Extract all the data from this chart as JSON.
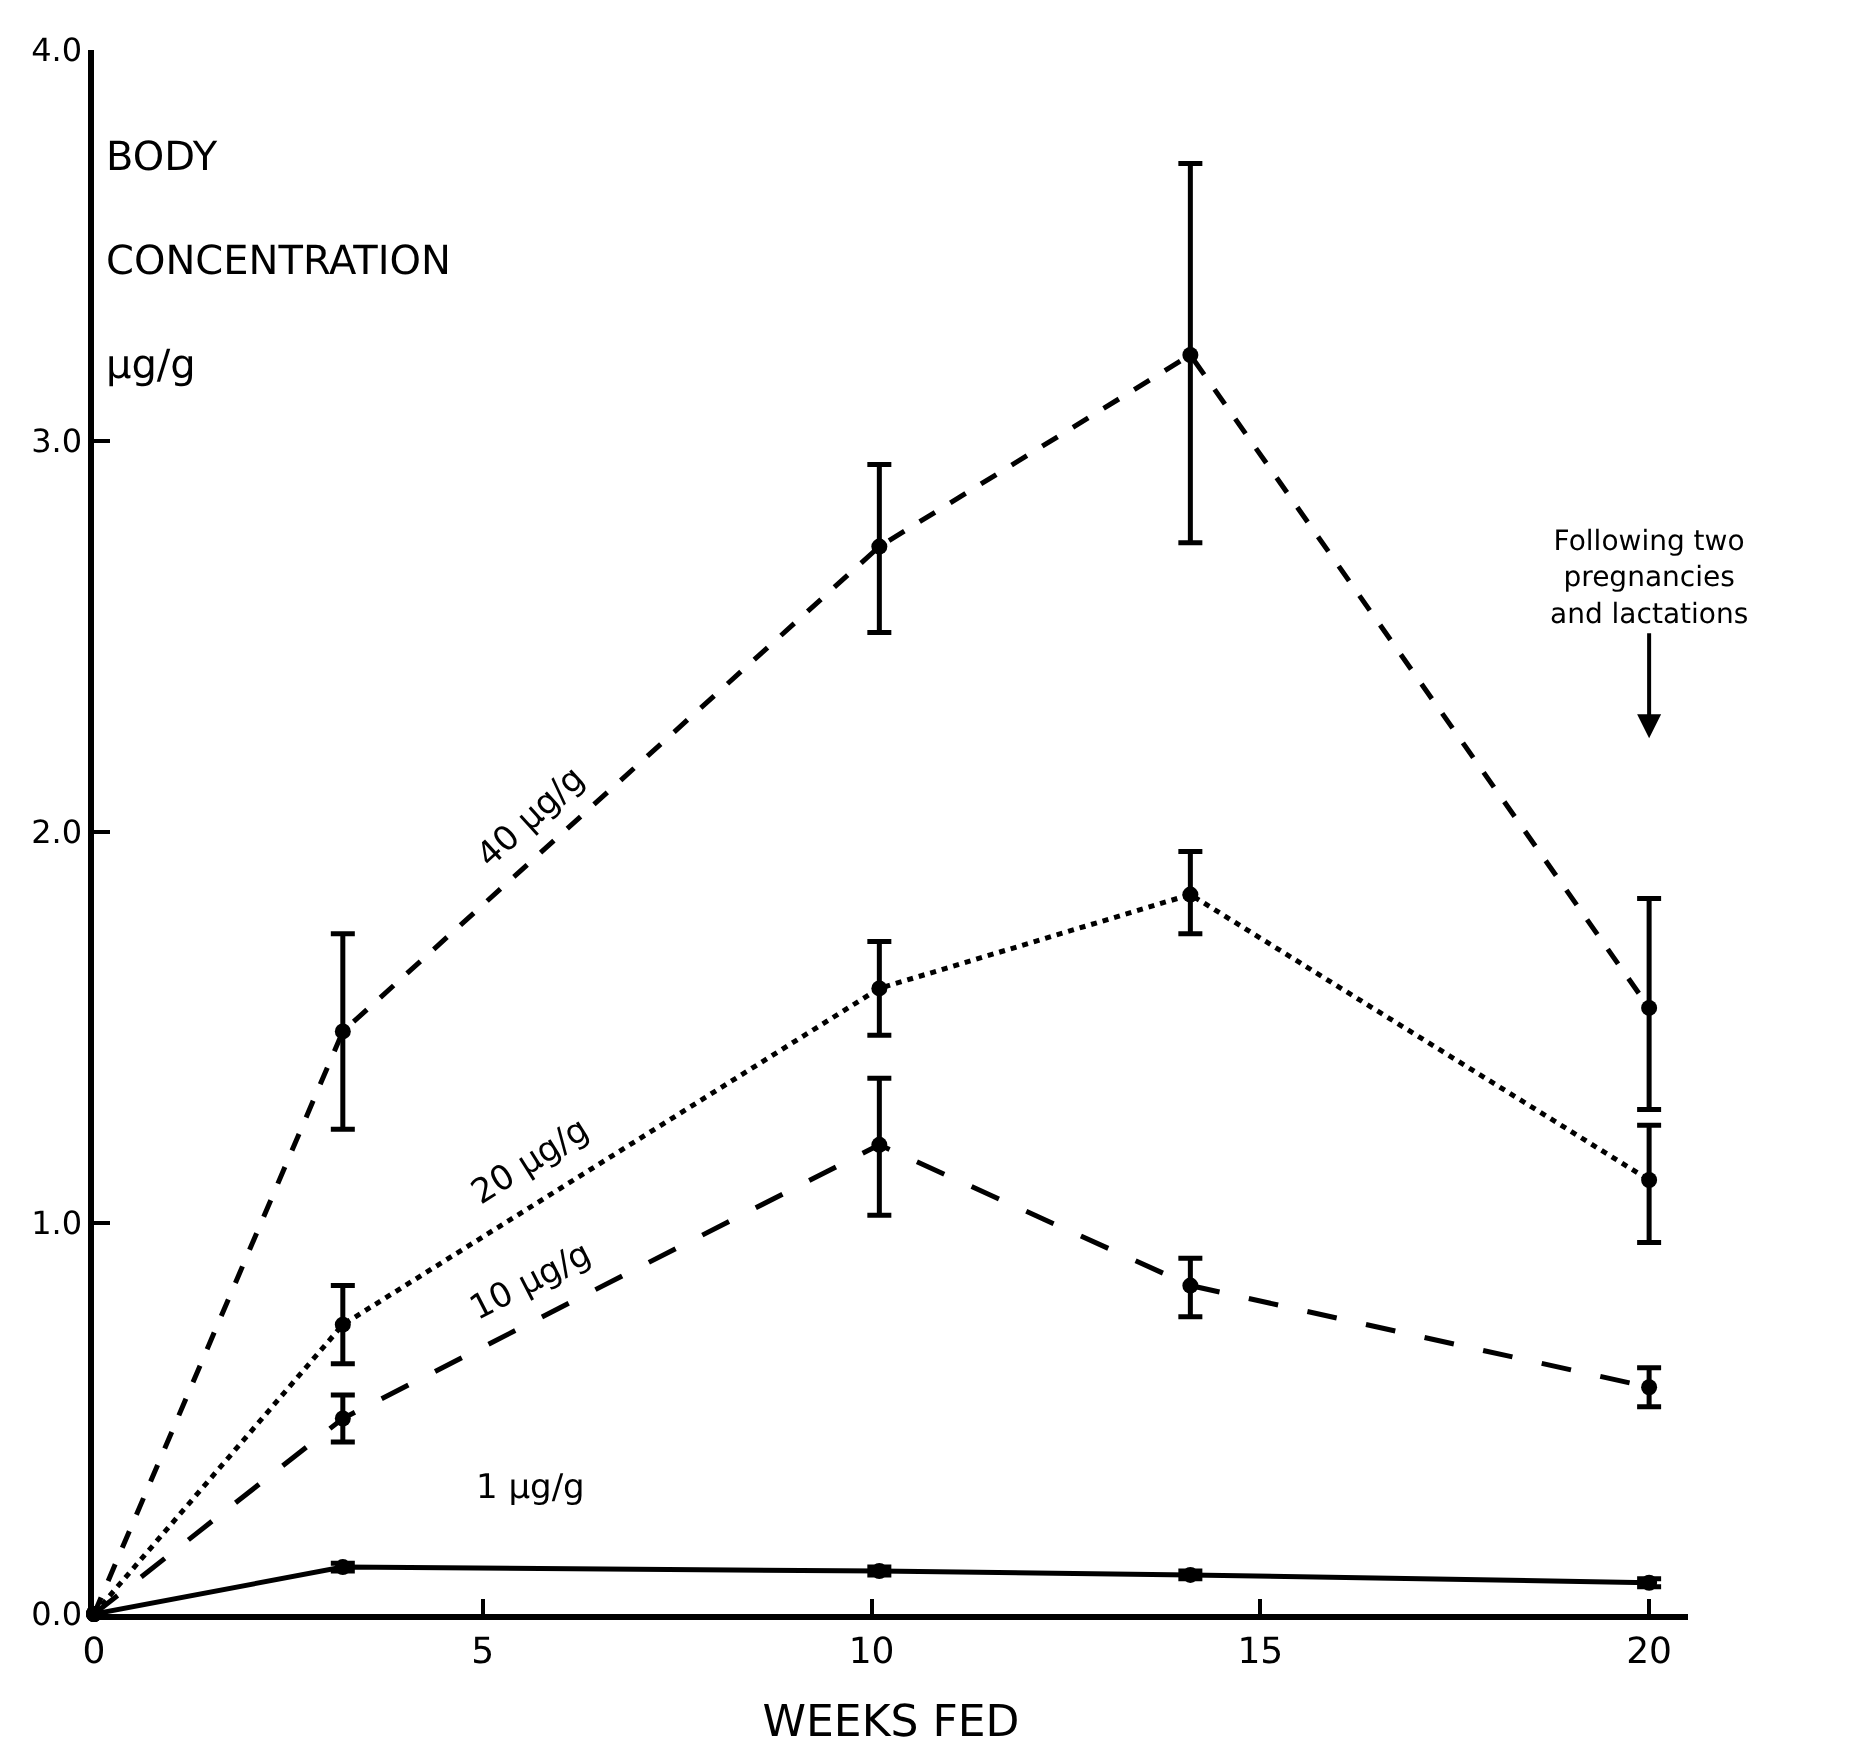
{
  "chart_data": {
    "type": "line",
    "xlabel": "WEEKS FED",
    "ylabel": "BODY CONCENTRATION µg/g",
    "series": [
      {
        "name": "40 µg/g",
        "color": "#000000",
        "line_style": "dashed",
        "x": [
          0,
          3.2,
          10.1,
          14.1,
          20
        ],
        "values": [
          0,
          1.49,
          2.73,
          3.22,
          1.55
        ],
        "errors": [
          null,
          [
            1.24,
            1.74
          ],
          [
            2.51,
            2.94
          ],
          [
            2.74,
            3.71
          ],
          [
            1.29,
            1.83
          ]
        ]
      },
      {
        "name": "20 µg/g",
        "color": "#000000",
        "line_style": "dotted",
        "x": [
          0,
          3.2,
          10.1,
          14.1,
          20
        ],
        "values": [
          0,
          0.74,
          1.6,
          1.84,
          1.11
        ],
        "errors": [
          null,
          [
            0.64,
            0.84
          ],
          [
            1.48,
            1.72
          ],
          [
            1.74,
            1.95
          ],
          [
            0.95,
            1.25
          ]
        ]
      },
      {
        "name": "10 µg/g",
        "color": "#000000",
        "line_style": "dashed",
        "x": [
          0,
          3.2,
          10.1,
          14.1,
          20
        ],
        "values": [
          0,
          0.5,
          1.2,
          0.84,
          0.58
        ],
        "errors": [
          null,
          [
            0.44,
            0.56
          ],
          [
            1.02,
            1.37
          ],
          [
            0.76,
            0.91
          ],
          [
            0.53,
            0.63
          ]
        ]
      },
      {
        "name": "1 µg/g",
        "color": "#000000",
        "line_style": "solid",
        "x": [
          0,
          3.2,
          10.1,
          14.1,
          20
        ],
        "values": [
          0,
          0.12,
          0.11,
          0.1,
          0.08
        ],
        "errors": [
          null,
          0.01,
          0.01,
          0.01,
          0.01
        ]
      }
    ],
    "annotations": [
      "Following two pregnancies and lactations"
    ],
    "xlim": [
      0,
      20.5
    ],
    "xticks": [
      0,
      5,
      10,
      15,
      20
    ],
    "ylim": [
      0,
      4
    ],
    "yticks": [
      {
        "value": 0,
        "label": "0.0"
      },
      {
        "value": 1,
        "label": "1.0"
      },
      {
        "value": 2,
        "label": "2.0"
      },
      {
        "value": 3,
        "label": "3.0"
      },
      {
        "value": 4,
        "label": "4.0"
      }
    ],
    "grid": false,
    "legend": false,
    "marker": "circle"
  }
}
